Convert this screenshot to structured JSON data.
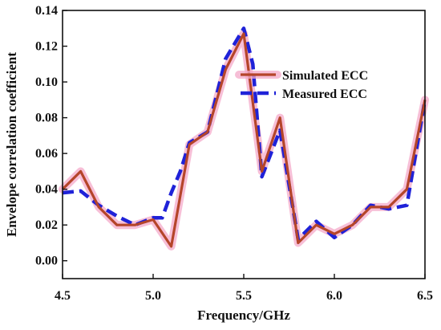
{
  "chart_data": {
    "type": "line",
    "xlabel": "Frequency/GHz",
    "ylabel": "Envelope correlation coefficient",
    "xlim": [
      4.5,
      6.5
    ],
    "ylim": [
      -0.01,
      0.14
    ],
    "x_ticks": [
      4.5,
      5.0,
      5.5,
      6.0,
      6.5
    ],
    "x_tick_labels": [
      "4.5",
      "5.0",
      "5.5",
      "6.0",
      "6.5"
    ],
    "y_ticks": [
      0.0,
      0.02,
      0.04,
      0.06,
      0.08,
      0.1,
      0.12,
      0.14
    ],
    "y_tick_labels": [
      "0.00",
      "0.02",
      "0.04",
      "0.06",
      "0.08",
      "0.10",
      "0.12",
      "0.14"
    ],
    "grid": false,
    "legend_position": "top-right",
    "series": [
      {
        "name": "Simulated ECC",
        "color": "#b5452a",
        "glow_color": "#f4a9c9",
        "style": "solid",
        "x": [
          4.5,
          4.6,
          4.7,
          4.8,
          4.9,
          5.0,
          5.1,
          5.2,
          5.3,
          5.4,
          5.5,
          5.6,
          5.7,
          5.8,
          5.9,
          6.0,
          6.1,
          6.2,
          6.3,
          6.4,
          6.5
        ],
        "y": [
          0.04,
          0.05,
          0.03,
          0.02,
          0.02,
          0.023,
          0.008,
          0.065,
          0.072,
          0.107,
          0.127,
          0.05,
          0.08,
          0.01,
          0.02,
          0.015,
          0.02,
          0.03,
          0.03,
          0.04,
          0.09
        ]
      },
      {
        "name": "Measured ECC",
        "color": "#1f22d8",
        "style": "dashed",
        "x": [
          4.5,
          4.6,
          4.7,
          4.8,
          4.9,
          5.0,
          5.05,
          5.1,
          5.15,
          5.2,
          5.3,
          5.4,
          5.5,
          5.55,
          5.6,
          5.7,
          5.8,
          5.9,
          6.0,
          6.1,
          6.2,
          6.3,
          6.4,
          6.5
        ],
        "y": [
          0.038,
          0.039,
          0.031,
          0.025,
          0.02,
          0.024,
          0.024,
          0.038,
          0.05,
          0.066,
          0.072,
          0.113,
          0.13,
          0.11,
          0.047,
          0.073,
          0.012,
          0.022,
          0.013,
          0.02,
          0.031,
          0.029,
          0.031,
          0.09
        ]
      }
    ]
  }
}
